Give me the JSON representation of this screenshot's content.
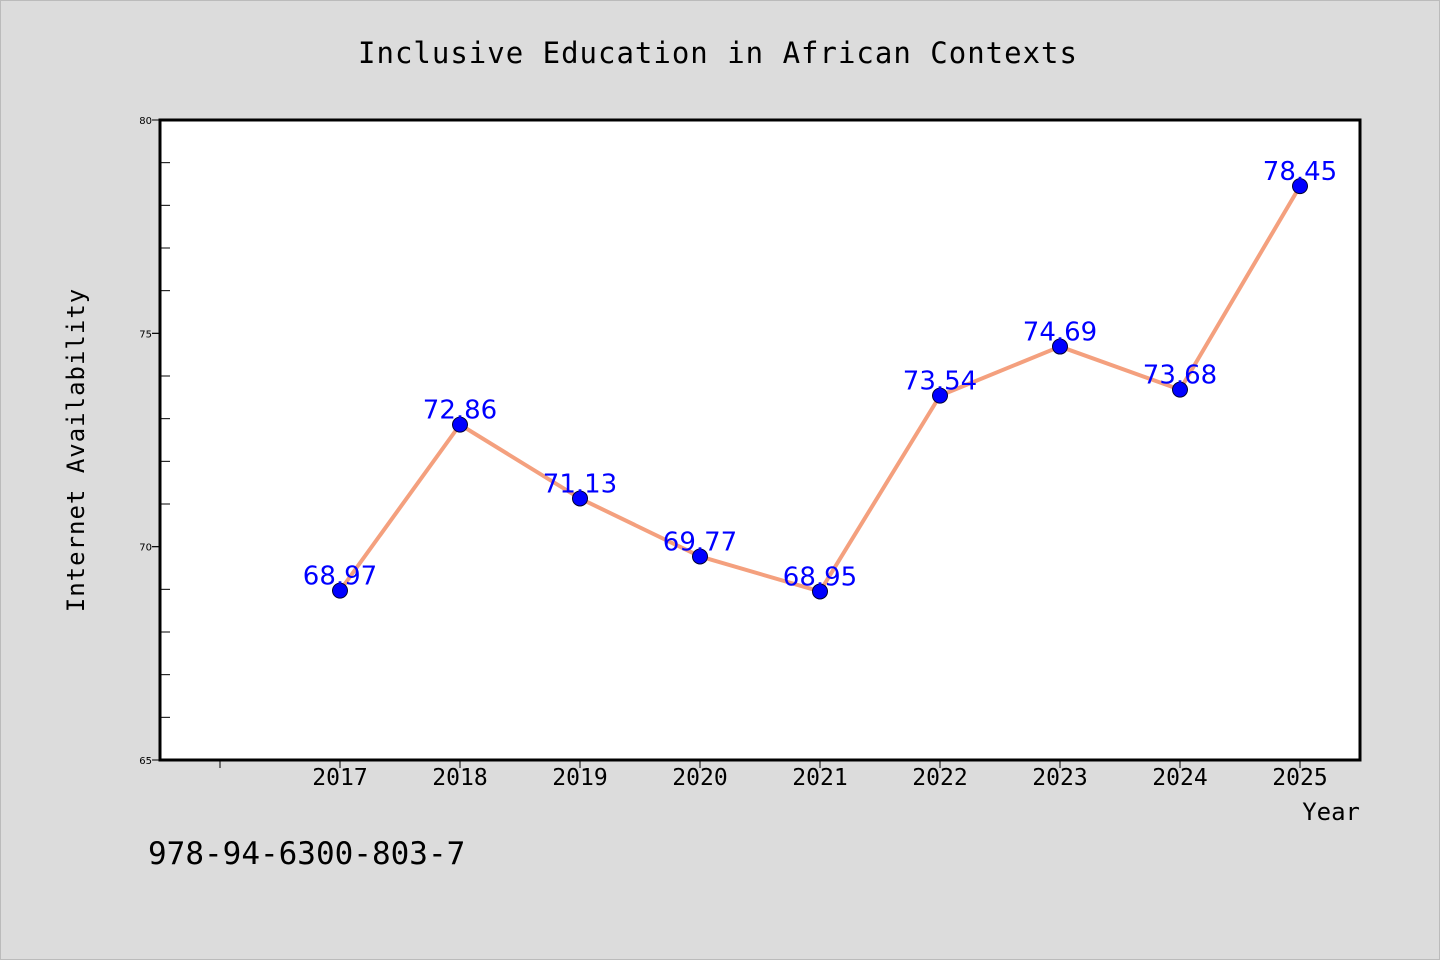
{
  "chart_data": {
    "type": "line",
    "title": "Inclusive Education in African Contexts",
    "xlabel": "Year",
    "ylabel": "Internet Availability",
    "categories": [
      "2017",
      "2018",
      "2019",
      "2020",
      "2021",
      "2022",
      "2023",
      "2024",
      "2025"
    ],
    "series": [
      {
        "values": [
          68.97,
          72.86,
          71.13,
          69.77,
          68.95,
          73.54,
          74.69,
          73.68,
          78.45
        ],
        "data_labels": [
          "68.97",
          "72.86",
          "71.13",
          "69.77",
          "68.95",
          "73.54",
          "74.69",
          "73.68",
          "78.45"
        ],
        "line_color": "#f4a07e",
        "marker_color": "#0000ff"
      }
    ],
    "ylim": [
      65,
      80
    ],
    "yticks": [
      "65",
      "70",
      "75",
      "80"
    ],
    "grid": false,
    "legend": "none",
    "annotation": "978-94-6300-803-7",
    "background_color": "#dcdcdc",
    "plot_background_color": "#ffffff",
    "label_color": "#0000ff"
  }
}
